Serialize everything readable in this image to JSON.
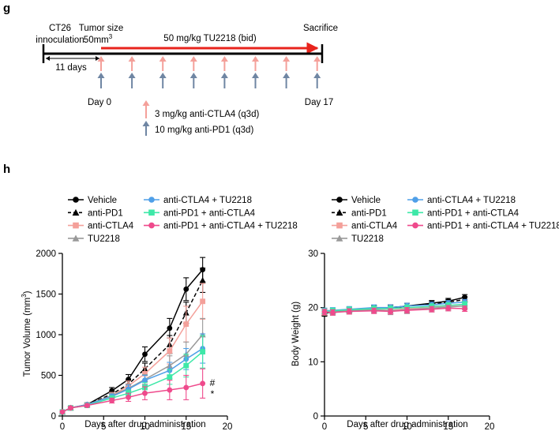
{
  "panel_g": {
    "label": "g",
    "inoculation": [
      "CT26",
      "innoculation"
    ],
    "tumor_size": "Tumor size",
    "tumor_size_value": "50mm",
    "tumor_size_sup": "3",
    "treatment": "50 mg/kg TU2218 (bid)",
    "sacrifice": "Sacrifice",
    "interval": "11 days",
    "day_start": "Day 0",
    "day_end": "Day 17",
    "legend": [
      {
        "text": "3 mg/kg anti-CTLA4 (q3d)",
        "color": "#f4a09a"
      },
      {
        "text": "10 mg/kg anti-PD1 (q3d)",
        "color": "#6f86a3"
      }
    ],
    "colors": {
      "treatment_bar": "#e8231c",
      "timeline": "#000000"
    }
  },
  "panel_h": {
    "label": "h",
    "legend": [
      {
        "name": "Vehicle",
        "color": "#000000",
        "marker": "circle",
        "dash": false
      },
      {
        "name": "anti-PD1",
        "color": "#000000",
        "marker": "triangle",
        "dash": true
      },
      {
        "name": "anti-CTLA4",
        "color": "#f4a09a",
        "marker": "square",
        "dash": false
      },
      {
        "name": "TU2218",
        "color": "#999999",
        "marker": "triangle",
        "dash": false
      },
      {
        "name": "anti-CTLA4 + TU2218",
        "color": "#4f9fe8",
        "marker": "circle",
        "dash": false
      },
      {
        "name": "anti-PD1 + anti-CTLA4",
        "color": "#3ee8a8",
        "marker": "square",
        "dash": false
      },
      {
        "name": "anti-PD1 + anti-CTLA4 + TU2218",
        "color": "#ef4a8c",
        "marker": "circle",
        "dash": false
      }
    ]
  },
  "chart_data": [
    {
      "type": "line",
      "title": "",
      "xlabel": "Days after drug administration",
      "ylabel": "Tumor Volume (mm",
      "ylabel_sup": "3",
      "ylabel_tail": ")",
      "xlim": [
        0,
        20
      ],
      "ylim": [
        0,
        2000
      ],
      "xticks": [
        0,
        5,
        10,
        15,
        20
      ],
      "yticks": [
        0,
        500,
        1000,
        1500,
        2000
      ],
      "annotations": [
        "#",
        "*"
      ],
      "x": [
        0,
        1,
        3,
        6,
        8,
        10,
        13,
        15,
        17
      ],
      "series": [
        {
          "name": "Vehicle",
          "values": [
            50,
            100,
            140,
            310,
            450,
            760,
            1080,
            1560,
            1800
          ],
          "errors": [
            10,
            15,
            20,
            40,
            60,
            90,
            120,
            140,
            150
          ]
        },
        {
          "name": "anti-PD1",
          "values": [
            50,
            100,
            140,
            270,
            390,
            580,
            880,
            1270,
            1670
          ],
          "errors": [
            10,
            15,
            20,
            35,
            50,
            70,
            110,
            130,
            150
          ]
        },
        {
          "name": "anti-CTLA4",
          "values": [
            50,
            100,
            140,
            250,
            370,
            520,
            800,
            1130,
            1410
          ],
          "errors": [
            10,
            15,
            20,
            40,
            60,
            80,
            160,
            220,
            220
          ]
        },
        {
          "name": "TU2218",
          "values": [
            50,
            100,
            140,
            250,
            340,
            450,
            620,
            760,
            1000
          ],
          "errors": [
            10,
            15,
            20,
            30,
            50,
            60,
            120,
            150,
            200
          ]
        },
        {
          "name": "anti-CTLA4 + TU2218",
          "values": [
            50,
            100,
            140,
            240,
            330,
            440,
            560,
            700,
            830
          ],
          "errors": [
            10,
            15,
            20,
            30,
            50,
            60,
            100,
            130,
            180
          ]
        },
        {
          "name": "anti-PD1 + anti-CTLA4",
          "values": [
            50,
            100,
            130,
            220,
            280,
            350,
            480,
            620,
            790
          ],
          "errors": [
            10,
            15,
            20,
            30,
            40,
            60,
            90,
            140,
            200
          ]
        },
        {
          "name": "anti-PD1 + anti-CTLA4 + TU2218",
          "values": [
            50,
            100,
            130,
            190,
            230,
            280,
            320,
            350,
            400
          ],
          "errors": [
            10,
            15,
            20,
            30,
            50,
            80,
            120,
            150,
            180
          ]
        }
      ]
    },
    {
      "type": "line",
      "title": "",
      "xlabel": "Days after drug administration",
      "ylabel": "Body Weight (g)",
      "xlim": [
        0,
        20
      ],
      "ylim": [
        0,
        30
      ],
      "xticks": [
        0,
        5,
        10,
        15,
        20
      ],
      "yticks": [
        0,
        10,
        20,
        30
      ],
      "x": [
        0,
        1,
        3,
        6,
        8,
        10,
        13,
        15,
        17
      ],
      "series": [
        {
          "name": "Vehicle",
          "values": [
            18.9,
            19.3,
            19.5,
            19.8,
            19.9,
            20.3,
            20.8,
            21.2,
            21.9
          ],
          "errors": [
            0.5,
            0.5,
            0.5,
            0.5,
            0.5,
            0.5,
            0.5,
            0.5,
            0.5
          ]
        },
        {
          "name": "anti-PD1",
          "values": [
            19.0,
            19.4,
            19.6,
            19.9,
            20.0,
            20.3,
            20.7,
            21.0,
            21.5
          ],
          "errors": [
            0.5,
            0.5,
            0.5,
            0.5,
            0.5,
            0.5,
            0.5,
            0.5,
            0.5
          ]
        },
        {
          "name": "anti-CTLA4",
          "values": [
            19.2,
            19.2,
            19.5,
            19.6,
            19.5,
            19.8,
            20.0,
            20.3,
            20.6
          ],
          "errors": [
            0.6,
            0.6,
            0.6,
            0.6,
            0.7,
            0.7,
            0.7,
            0.7,
            0.7
          ]
        },
        {
          "name": "TU2218",
          "values": [
            19.3,
            19.2,
            19.4,
            19.6,
            19.4,
            19.6,
            19.9,
            20.1,
            20.3
          ],
          "errors": [
            0.6,
            0.6,
            0.6,
            0.6,
            0.7,
            0.7,
            0.7,
            0.7,
            0.7
          ]
        },
        {
          "name": "anti-CTLA4 + TU2218",
          "values": [
            19.4,
            19.5,
            19.7,
            20.0,
            20.0,
            20.3,
            20.5,
            20.8,
            21.0
          ],
          "errors": [
            0.5,
            0.5,
            0.5,
            0.5,
            0.5,
            0.5,
            0.5,
            0.5,
            0.5
          ]
        },
        {
          "name": "anti-PD1 + anti-CTLA4",
          "values": [
            19.3,
            19.4,
            19.6,
            19.8,
            19.8,
            20.0,
            20.2,
            20.4,
            20.6
          ],
          "errors": [
            0.5,
            0.5,
            0.5,
            0.5,
            0.5,
            0.5,
            0.5,
            0.5,
            0.5
          ]
        },
        {
          "name": "anti-PD1 + anti-CTLA4 + TU2218",
          "values": [
            19.2,
            19.1,
            19.3,
            19.4,
            19.3,
            19.5,
            19.7,
            19.9,
            19.8
          ],
          "errors": [
            0.5,
            0.5,
            0.5,
            0.5,
            0.5,
            0.5,
            0.5,
            0.5,
            0.5
          ]
        }
      ]
    }
  ]
}
